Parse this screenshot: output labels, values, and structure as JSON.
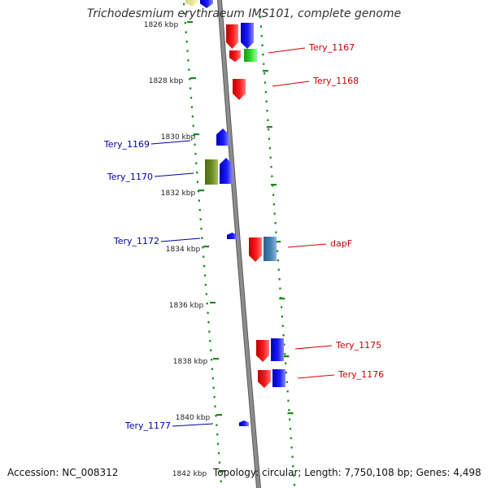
{
  "title": "Trichodesmium erythraeum IMS101, complete genome",
  "footer": {
    "accession": "Accession: NC_008312",
    "stats": "Topology: circular; Length: 7,750,108 bp; Genes: 4,498"
  },
  "colors": {
    "backbone": "#8c8c8c",
    "tick": "#1a8a1a",
    "forward_label": "#cc0000",
    "reverse_label": "#0000aa",
    "gene_red": "#ee1111",
    "gene_blue": "#1a1aee",
    "gene_green": "#22cc22",
    "gene_olive": "#6b8e23",
    "gene_steel": "#4682b4",
    "gene_yellow": "#eeee99",
    "kbp_text": "#222222"
  },
  "kbp_labels": [
    "1826 kbp",
    "1828 kbp",
    "1830 kbp",
    "1832 kbp",
    "1834 kbp",
    "1836 kbp",
    "1838 kbp",
    "1840 kbp",
    "1842 kbp"
  ],
  "gene_labels": [
    {
      "text": "Tery_1167",
      "strand": "forward"
    },
    {
      "text": "Tery_1168",
      "strand": "forward"
    },
    {
      "text": "Tery_1169",
      "strand": "reverse"
    },
    {
      "text": "Tery_1170",
      "strand": "reverse"
    },
    {
      "text": "Tery_1172",
      "strand": "reverse"
    },
    {
      "text": "dapF",
      "strand": "forward"
    },
    {
      "text": "Tery_1175",
      "strand": "forward"
    },
    {
      "text": "Tery_1176",
      "strand": "forward"
    },
    {
      "text": "Tery_1177",
      "strand": "reverse"
    }
  ]
}
